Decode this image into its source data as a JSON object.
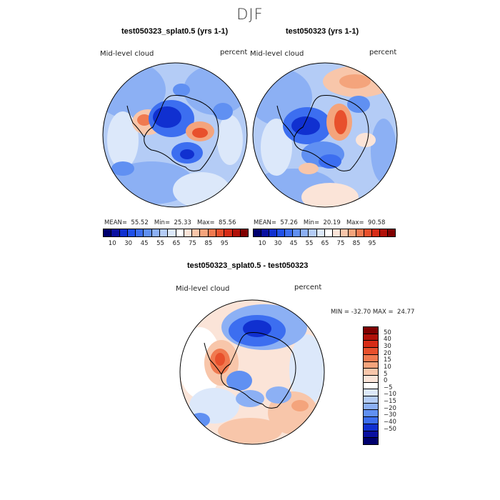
{
  "figure": {
    "suptitle": "DJF"
  },
  "panels": [
    {
      "title": "test050323_splat0.5 (yrs 1-1)",
      "field_label": "Mid-level cloud",
      "units": "percent",
      "stats": {
        "mean_label": "MEAN=",
        "mean": "55.52",
        "min_label": "Min=",
        "min": "25.33",
        "max_label": "Max=",
        "max": "85.56"
      }
    },
    {
      "title": "test050323 (yrs 1-1)",
      "field_label": "Mid-level cloud",
      "units": "percent",
      "stats": {
        "mean_label": "MEAN=",
        "mean": "57.26",
        "min_label": "Min=",
        "min": "20.19",
        "max_label": "Max=",
        "max": "90.58"
      }
    },
    {
      "title": "test050323_splat0.5 - test050323",
      "field_label": "Mid-level cloud",
      "units": "percent",
      "stats": {
        "min_label": "MIN =",
        "min": "-32.70",
        "max_label": "MAX =",
        "max": "24.77"
      }
    }
  ],
  "colorbars": {
    "absolute": {
      "ticks": [
        "10",
        "30",
        "45",
        "55",
        "65",
        "75",
        "85",
        "95"
      ],
      "colors": [
        "#00006e",
        "#0a10a0",
        "#1030d0",
        "#2050e8",
        "#3c6ef0",
        "#6090f2",
        "#8cb0f4",
        "#b4ccf6",
        "#dce8fa",
        "#ffffff",
        "#fbe4d8",
        "#f8c6aa",
        "#f4a47c",
        "#f07a50",
        "#e8502c",
        "#d62c16",
        "#b01008",
        "#800000"
      ]
    },
    "difference": {
      "ticks": [
        "50",
        "40",
        "30",
        "20",
        "15",
        "10",
        "5",
        "0",
        "−5",
        "−10",
        "−15",
        "−20",
        "−30",
        "−40",
        "−50"
      ],
      "colors": [
        "#800000",
        "#b01008",
        "#d62c16",
        "#e8502c",
        "#f07a50",
        "#f4a47c",
        "#f8c6aa",
        "#fbe4d8",
        "#ffffff",
        "#dce8fa",
        "#b4ccf6",
        "#8cb0f4",
        "#6090f2",
        "#3c6ef0",
        "#1030d0",
        "#0a10a0",
        "#00006e"
      ]
    }
  }
}
